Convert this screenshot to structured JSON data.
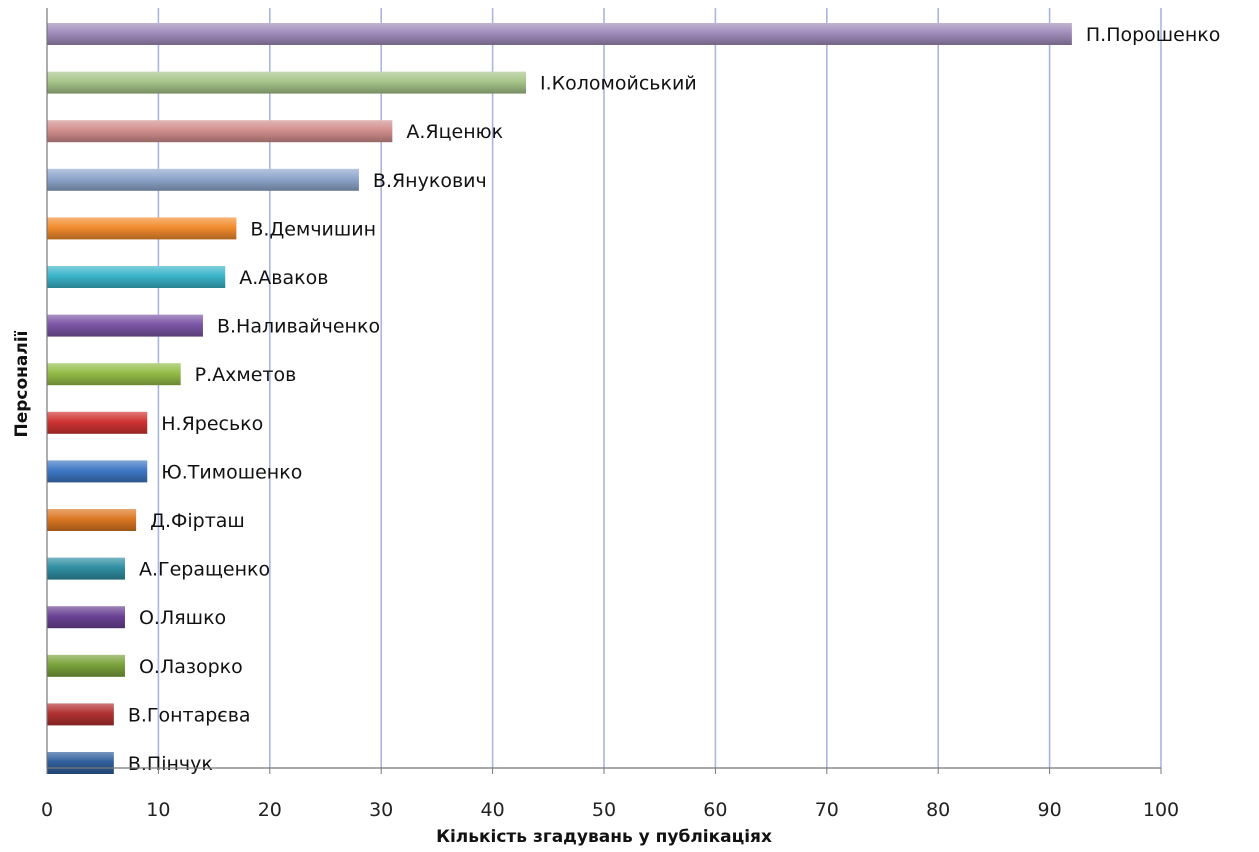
{
  "chart_data": {
    "type": "bar",
    "orientation": "horizontal",
    "title": "",
    "xlabel": "Кількість згадувань у публікаціях",
    "ylabel": "Персоналії",
    "xlim": [
      0,
      100
    ],
    "x_ticks": [
      0,
      10,
      20,
      30,
      40,
      50,
      60,
      70,
      80,
      90,
      100
    ],
    "grid": "vertical",
    "legend": "none",
    "categories": [
      "П.Порошенко",
      "І.Коломойський",
      "А.Яценюк",
      "В.Янукович",
      "В.Демчишин",
      "А.Аваков",
      "В.Наливайченко",
      "Р.Ахметов",
      "Н.Яресько",
      "Ю.Тимошенко",
      "Д.Фірташ",
      "А.Геращенко",
      "О.Ляшко",
      "О.Лазорко",
      "В.Гонтарєва",
      "В.Пінчук"
    ],
    "values": [
      92,
      43,
      31,
      28,
      17,
      16,
      14,
      12,
      9,
      9,
      8,
      7,
      7,
      7,
      6,
      6
    ],
    "colors": [
      "#a08cba",
      "#a7c58a",
      "#d28f8e",
      "#8ea6cc",
      "#f28c2e",
      "#3ab5c9",
      "#7c55a6",
      "#94bd48",
      "#cf3433",
      "#3f78c5",
      "#db7723",
      "#2f8fa2",
      "#6a4294",
      "#7aa33c",
      "#b23131",
      "#305f9c"
    ],
    "grid_color": "#aab6e0"
  }
}
